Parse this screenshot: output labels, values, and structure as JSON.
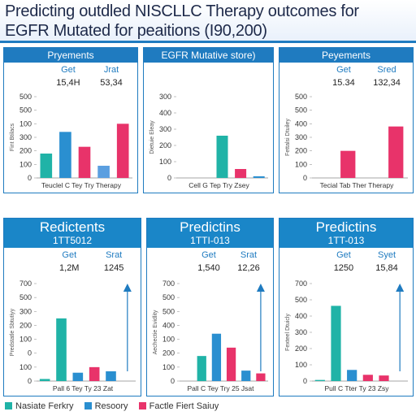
{
  "title": {
    "line1": "Predicting outdled NISCLLC Therapy outcomes for",
    "line2": "EGFR Mutated for peaitions (I90,200)"
  },
  "colors": {
    "teal": "#20b3a7",
    "blue": "#2a8fd0",
    "lightblue": "#5b9fe0",
    "red": "#e8336a",
    "accent": "#1f7bc0"
  },
  "panels": [
    {
      "title": "Pryements",
      "ann_left": "Get",
      "ann_right": "Jrat",
      "val_left": "15,4H",
      "val_right": "53,34",
      "ylabel": "Fint Btilacs",
      "ticks": [
        "500",
        "500",
        "100",
        "300",
        "200",
        "100",
        "0"
      ],
      "xticks": "Teuclel  C  Tey  Try  Therapy"
    },
    {
      "title": "EGFR Mutative store)",
      "ann_left": "",
      "ann_right": "",
      "val_left": "",
      "val_right": "",
      "ylabel": "Dietuie Eleay",
      "ticks": [
        "300",
        "400",
        "300",
        "200",
        "100",
        "0"
      ],
      "xticks": "Cell  G  Tep  Try  Zsey"
    },
    {
      "title": "Peyements",
      "ann_left": "Get",
      "ann_right": "Sred",
      "val_left": "15.34",
      "val_right": "132,34",
      "ylabel": "Fettalsi Dtuiley",
      "ticks": [
        "500",
        "500",
        "400",
        "300",
        "200",
        "100",
        "0"
      ],
      "xticks": "Tecial  Tab  Ther Therapy"
    },
    {
      "title": "Redictents",
      "subtitle": "1TT5012",
      "ann_left": "Get",
      "ann_right": "Srat",
      "val_left": "1,2M",
      "val_right": "1245",
      "ylabel": "Predstatle Sbtutiyy",
      "ticks": [
        "700",
        "500",
        "300",
        "200",
        "100",
        "0",
        "100",
        "0"
      ],
      "xticks": "Pall  6  Tey  Ty  23  Zat"
    },
    {
      "title": "Predictins",
      "subtitle": "1TTI-013",
      "ann_left": "Get",
      "ann_right": "Srat",
      "val_left": "1,540",
      "val_right": "12,26",
      "ylabel": "Aechectie Evidlity",
      "ticks": [
        "700",
        "500",
        "500",
        "400",
        "100",
        "200",
        "100",
        "0"
      ],
      "xticks": "Pall  C  Tey  Try  25  Jsat"
    },
    {
      "title": "Predictins",
      "subtitle": "1TT-013",
      "ann_left": "Get",
      "ann_right": "Syet",
      "val_left": "1250",
      "val_right": "15,84",
      "ylabel": "Fexteel Dtuicly",
      "ticks": [
        "700",
        "500",
        "400",
        "300",
        "200",
        "100",
        "0"
      ],
      "xticks": "Pull  C  Tter  Ty  23  Zsy"
    }
  ],
  "legend": [
    {
      "label": "Nasiate Ferkry",
      "color": "#20b3a7"
    },
    {
      "label": "Resoory",
      "color": "#2a8fd0"
    },
    {
      "label": "Factle Fiert Saiuy",
      "color": "#e8336a"
    }
  ],
  "chart_data": [
    {
      "type": "bar",
      "categories": [
        "Teuclel",
        "C",
        "Tey",
        "Try",
        "Therapy"
      ],
      "values": [
        180,
        340,
        230,
        90,
        400
      ],
      "colors": [
        "teal",
        "blue",
        "red",
        "lightblue",
        "red"
      ],
      "ylim": [
        0,
        600
      ]
    },
    {
      "type": "bar",
      "categories": [
        "Cell",
        "G",
        "Tep",
        "Try",
        "Zsey"
      ],
      "values": [
        0,
        0,
        260,
        55,
        10
      ],
      "colors": [
        "teal",
        "teal",
        "teal",
        "red",
        "blue"
      ],
      "ylim": [
        0,
        500
      ]
    },
    {
      "type": "bar",
      "categories": [
        "Tecial",
        "Tab",
        "Ther",
        "Therapy"
      ],
      "values": [
        0,
        200,
        0,
        380
      ],
      "colors": [
        "red",
        "red",
        "red",
        "red"
      ],
      "ylim": [
        0,
        600
      ]
    },
    {
      "type": "bar",
      "categories": [
        "Pall",
        "6",
        "Tey",
        "Ty",
        "23",
        "Zat"
      ],
      "values": [
        15,
        450,
        60,
        100,
        70,
        0
      ],
      "colors": [
        "teal",
        "teal",
        "blue",
        "red",
        "blue",
        "blue"
      ],
      "ylim": [
        0,
        700
      ]
    },
    {
      "type": "bar",
      "categories": [
        "Pall",
        "C",
        "Tey",
        "Try",
        "25",
        "Jsat"
      ],
      "values": [
        0,
        180,
        340,
        240,
        75,
        55
      ],
      "colors": [
        "teal",
        "teal",
        "blue",
        "red",
        "blue",
        "red"
      ],
      "ylim": [
        0,
        700
      ]
    },
    {
      "type": "bar",
      "categories": [
        "Pull",
        "C",
        "Tter",
        "Ty",
        "23",
        "Zsy"
      ],
      "values": [
        8,
        540,
        80,
        45,
        40,
        0
      ],
      "colors": [
        "teal",
        "teal",
        "blue",
        "red",
        "red",
        "red"
      ],
      "ylim": [
        0,
        700
      ]
    }
  ]
}
